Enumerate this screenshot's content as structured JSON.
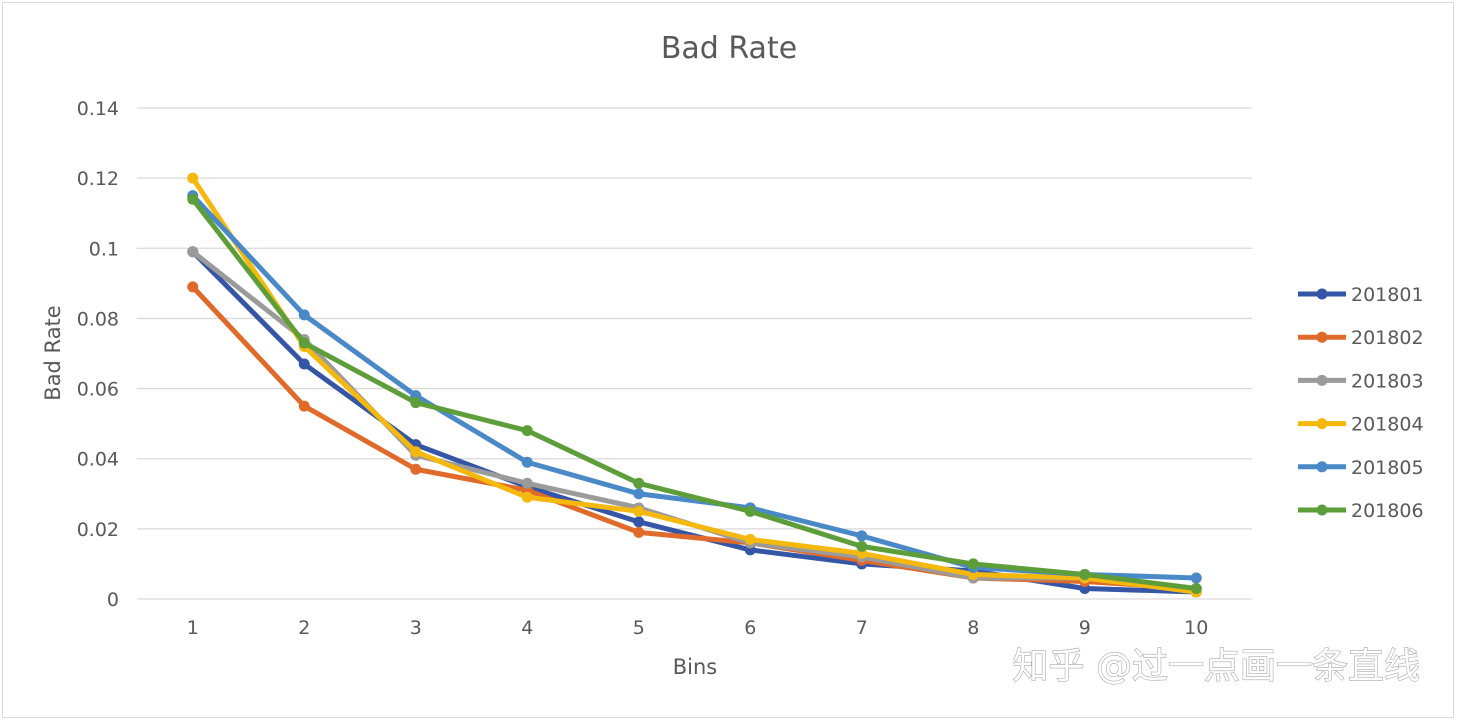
{
  "colors": {
    "grid": "#d9d9d9",
    "text": "#595959",
    "series": [
      "#3556a6",
      "#e06a29",
      "#9b9b9b",
      "#f5b80c",
      "#4a89c8",
      "#5e9e3a"
    ]
  },
  "watermark": "知乎 @过一点画一条直线",
  "chart_data": {
    "type": "line",
    "title": "Bad Rate",
    "xlabel": "Bins",
    "ylabel": "Bad Rate",
    "ylim": [
      0,
      0.14
    ],
    "yticks": [
      "0",
      "0.02",
      "0.04",
      "0.06",
      "0.08",
      "0.1",
      "0.12",
      "0.14"
    ],
    "ytick_values": [
      0,
      0.02,
      0.04,
      0.06,
      0.08,
      0.1,
      0.12,
      0.14
    ],
    "categories": [
      "1",
      "2",
      "3",
      "4",
      "5",
      "6",
      "7",
      "8",
      "9",
      "10"
    ],
    "legend_position": "right",
    "series": [
      {
        "name": "201801",
        "values": [
          0.099,
          0.067,
          0.044,
          0.032,
          0.022,
          0.014,
          0.01,
          0.008,
          0.003,
          0.002
        ]
      },
      {
        "name": "201802",
        "values": [
          0.089,
          0.055,
          0.037,
          0.031,
          0.019,
          0.016,
          0.011,
          0.006,
          0.005,
          0.003
        ]
      },
      {
        "name": "201803",
        "values": [
          0.099,
          0.074,
          0.041,
          0.033,
          0.026,
          0.016,
          0.012,
          0.006,
          0.006,
          0.002
        ]
      },
      {
        "name": "201804",
        "values": [
          0.12,
          0.072,
          0.042,
          0.029,
          0.025,
          0.017,
          0.013,
          0.007,
          0.006,
          0.002
        ]
      },
      {
        "name": "201805",
        "values": [
          0.115,
          0.081,
          0.058,
          0.039,
          0.03,
          0.026,
          0.018,
          0.009,
          0.007,
          0.006
        ]
      },
      {
        "name": "201806",
        "values": [
          0.114,
          0.073,
          0.056,
          0.048,
          0.033,
          0.025,
          0.015,
          0.01,
          0.007,
          0.003
        ]
      }
    ]
  }
}
